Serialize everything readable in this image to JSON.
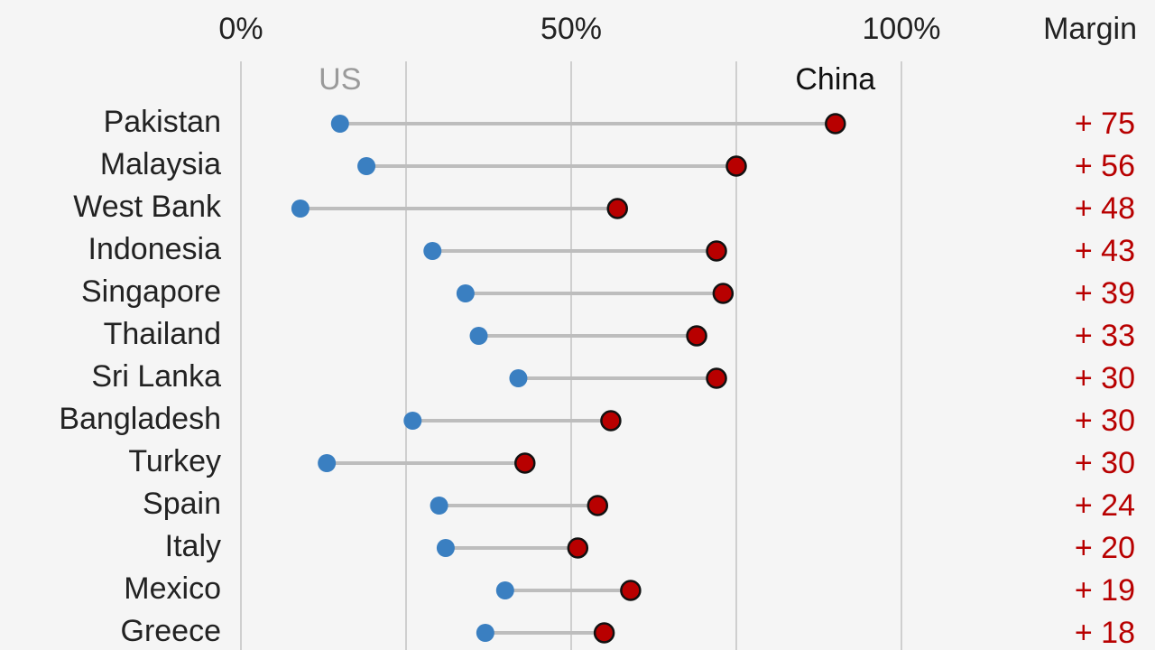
{
  "chart_data": {
    "type": "dumbbell",
    "categories": [
      "Pakistan",
      "Malaysia",
      "West Bank",
      "Indonesia",
      "Singapore",
      "Thailand",
      "Sri Lanka",
      "Bangladesh",
      "Turkey",
      "Spain",
      "Italy",
      "Mexico",
      "Greece"
    ],
    "series": [
      {
        "name": "US",
        "color": "#3a7fc1",
        "values": [
          15,
          19,
          9,
          29,
          34,
          36,
          42,
          26,
          13,
          30,
          31,
          40,
          37
        ]
      },
      {
        "name": "China",
        "color": "#b80000",
        "values": [
          90,
          75,
          57,
          72,
          73,
          69,
          72,
          56,
          43,
          54,
          51,
          59,
          55
        ]
      }
    ],
    "xlim": [
      0,
      100
    ],
    "xticks": [
      {
        "value": 0,
        "label": "0%"
      },
      {
        "value": 50,
        "label": "50%"
      },
      {
        "value": 100,
        "label": "100%"
      }
    ],
    "xgrid": [
      0,
      25,
      50,
      75,
      100
    ],
    "margin": {
      "title": "Margin",
      "color": "#b80000",
      "values": [
        75,
        56,
        48,
        43,
        39,
        33,
        30,
        30,
        30,
        24,
        20,
        19,
        18
      ],
      "value_labels": [
        "+ 75",
        "+ 56",
        "+ 48",
        "+ 43",
        "+ 39",
        "+ 33",
        "+ 30",
        "+ 30",
        "+ 30",
        "+ 24",
        "+ 20",
        "+ 19",
        "+ 18"
      ]
    }
  }
}
